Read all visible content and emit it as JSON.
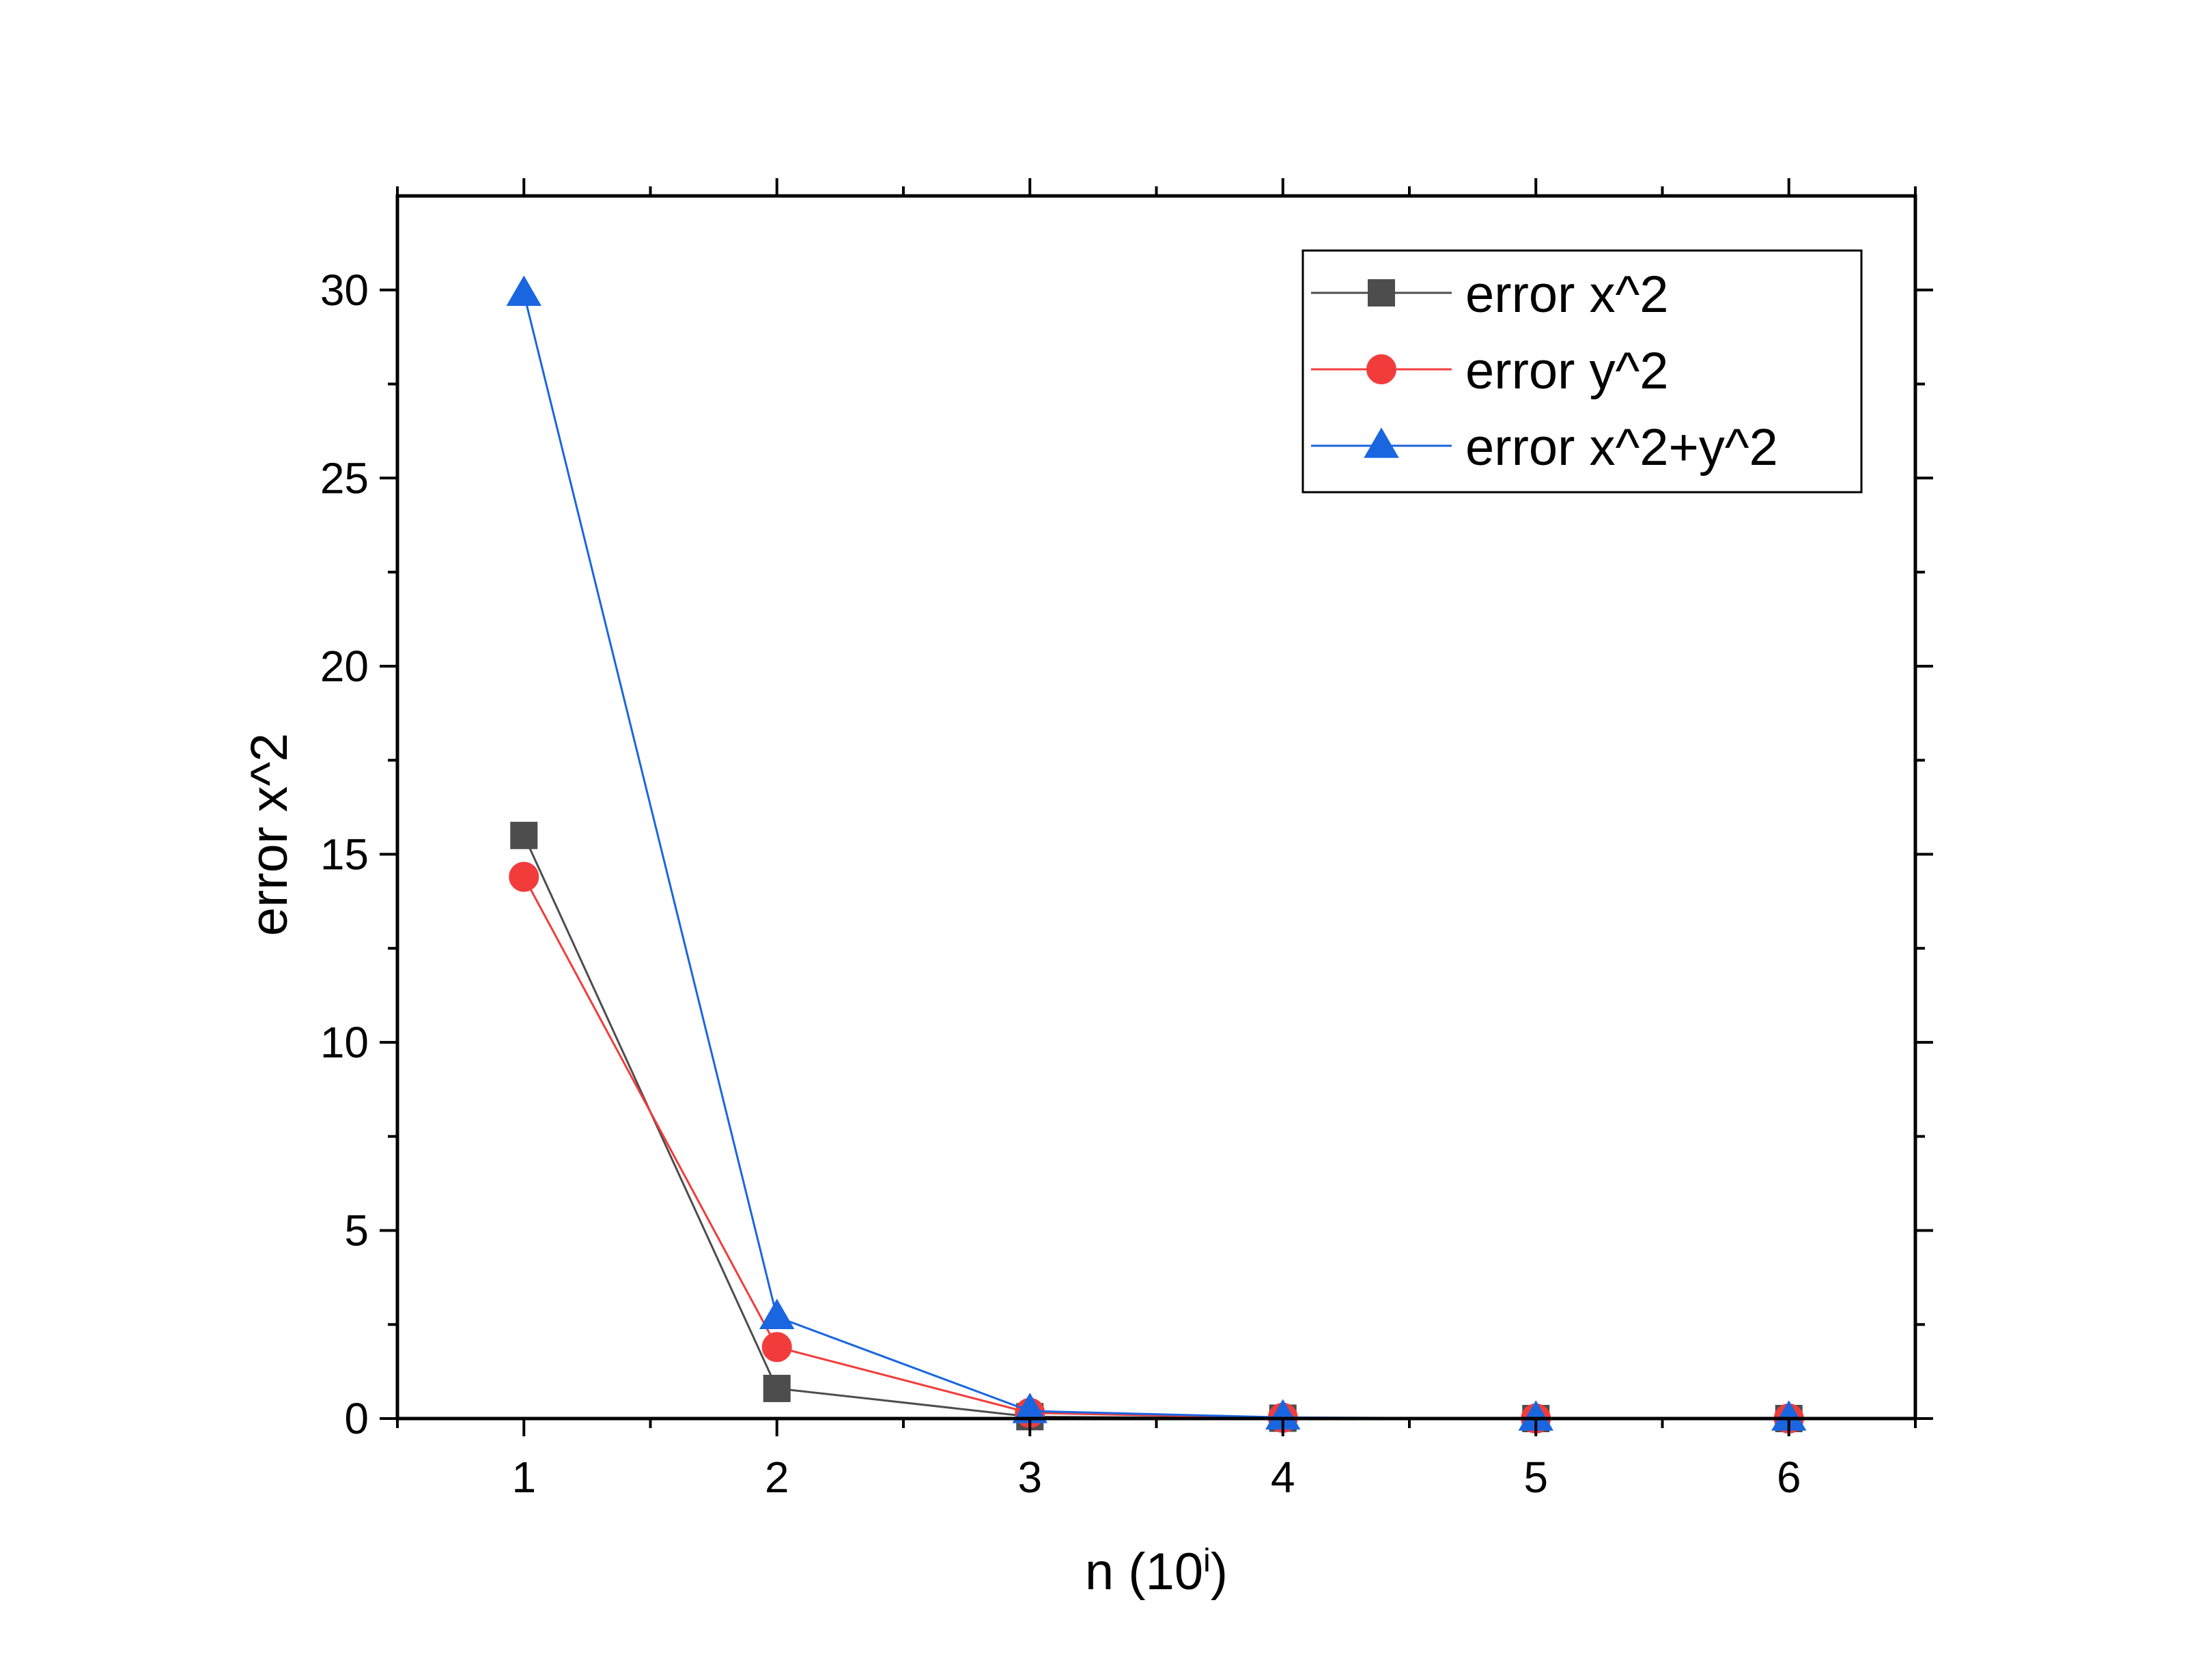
{
  "chart_data": {
    "type": "line",
    "title": "",
    "xlabel": "n (10",
    "xlabel_superscript": "i",
    "xlabel_suffix": ")",
    "ylabel": "error x^2",
    "xlim": [
      0.5,
      6.5
    ],
    "ylim": [
      0,
      32.5
    ],
    "x": [
      1,
      2,
      3,
      4,
      5,
      6
    ],
    "xticks": [
      "1",
      "2",
      "3",
      "4",
      "5",
      "6"
    ],
    "yticks": [
      "0",
      "5",
      "10",
      "15",
      "20",
      "25",
      "30"
    ],
    "ytick_values": [
      0,
      5,
      10,
      15,
      20,
      25,
      30
    ],
    "grid": false,
    "legend_position": "top-right",
    "series": [
      {
        "name": "error x^2",
        "values": [
          15.5,
          0.8,
          0.05,
          0.01,
          0.0,
          0.0
        ],
        "color": "#4d4d4d",
        "marker": "square"
      },
      {
        "name": "error y^2",
        "values": [
          14.4,
          1.9,
          0.15,
          0.02,
          0.0,
          0.0
        ],
        "color": "#f23c3c",
        "marker": "circle"
      },
      {
        "name": "error x^2+y^2",
        "values": [
          29.9,
          2.7,
          0.2,
          0.03,
          0.0,
          0.0
        ],
        "color": "#1a66e0",
        "marker": "triangle"
      }
    ]
  }
}
